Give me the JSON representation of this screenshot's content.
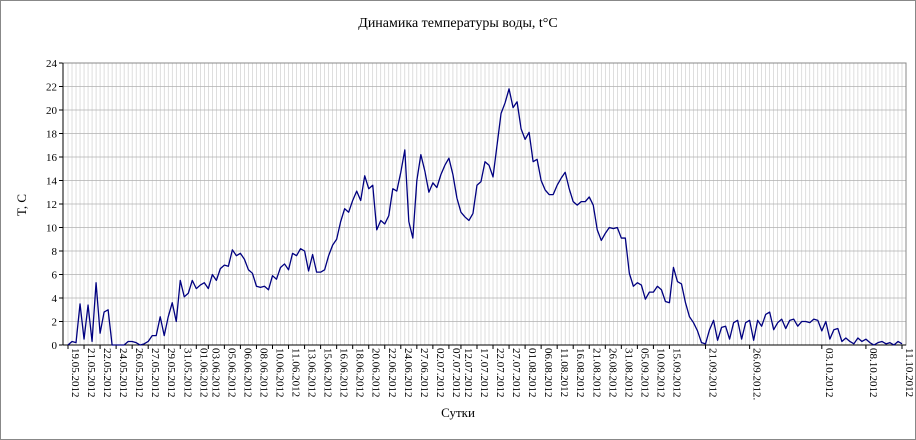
{
  "chart_data": {
    "type": "line",
    "title": "Динамика температуры воды, t°C",
    "y_label": "T, C",
    "x_label": "Сутки",
    "categories": [
      "19.05.2012",
      null,
      null,
      null,
      "21.05.2012",
      null,
      null,
      null,
      "22.05.2012",
      null,
      null,
      null,
      "24.05.2012",
      null,
      null,
      null,
      "26.05.2012",
      null,
      null,
      null,
      "27.05.2012",
      null,
      null,
      null,
      "29.05.2012",
      null,
      null,
      null,
      "31.05.2012",
      null,
      null,
      null,
      "01.06.2012",
      null,
      null,
      "03.06.2012",
      null,
      null,
      null,
      "05.06.2012",
      null,
      null,
      null,
      "06.06.2012",
      null,
      null,
      null,
      "08.06.2012",
      null,
      null,
      null,
      "10.06.2012",
      null,
      null,
      null,
      "11.06.2012",
      null,
      null,
      null,
      "13.06.2012",
      null,
      null,
      null,
      "15.06.2012",
      null,
      null,
      null,
      "16.06.2012",
      null,
      null,
      null,
      "18.06.2012",
      null,
      null,
      null,
      "20.06.2012",
      null,
      null,
      null,
      "22.06.2012",
      null,
      null,
      null,
      "24.06.2012",
      null,
      null,
      null,
      "27.06.2012",
      null,
      null,
      null,
      "02.07.2012",
      null,
      null,
      null,
      "07.07.2012",
      null,
      null,
      "12.07.2012",
      null,
      null,
      null,
      "17.07.2012",
      null,
      null,
      null,
      "22.07.2012",
      null,
      null,
      null,
      "27.07.2012",
      null,
      null,
      null,
      "01.08.2012",
      null,
      null,
      null,
      "06.08.2012",
      null,
      null,
      null,
      "11.08.2012",
      null,
      null,
      null,
      "16.08.2012",
      null,
      null,
      null,
      "21.08.2012",
      null,
      null,
      null,
      "26.08.2012",
      null,
      null,
      null,
      "31.08.2012",
      null,
      null,
      null,
      "05.09.2012",
      null,
      null,
      null,
      "10.09.2012",
      null,
      null,
      null,
      "15.09.2012",
      null,
      null,
      null,
      null,
      null,
      null,
      null,
      null,
      "21.09.2012",
      null,
      null,
      null,
      null,
      null,
      null,
      null,
      null,
      null,
      null,
      "26.09.2012.",
      null,
      null,
      null,
      null,
      null,
      null,
      null,
      null,
      null,
      null,
      null,
      null,
      null,
      null,
      null,
      null,
      null,
      "03.10.2012",
      null,
      null,
      null,
      null,
      null,
      null,
      null,
      null,
      null,
      null,
      "08.10.2012",
      null,
      null,
      null,
      null,
      null,
      null,
      null,
      null,
      "11.10.2012"
    ],
    "series": [
      {
        "color": "#000080",
        "values": [
          0,
          0.3,
          0.2,
          3.5,
          0.5,
          3.4,
          0.3,
          5.3,
          1,
          2.8,
          3,
          0,
          0,
          0,
          0,
          0.3,
          0.3,
          0.2,
          0,
          0.1,
          0.3,
          0.8,
          0.8,
          2.4,
          0.8,
          2.4,
          3.6,
          2,
          5.5,
          4.1,
          4.4,
          5.5,
          4.8,
          5.1,
          5.3,
          4.8,
          6,
          5.5,
          6.5,
          6.8,
          6.7,
          8.1,
          7.6,
          7.8,
          7.3,
          6.4,
          6.1,
          5,
          4.9,
          5,
          4.7,
          5.9,
          5.6,
          6.6,
          6.9,
          6.4,
          7.8,
          7.6,
          8.2,
          8,
          6.3,
          7.7,
          6.2,
          6.2,
          6.4,
          7.6,
          8.5,
          9,
          10.5,
          11.6,
          11.3,
          12.3,
          13.1,
          12.3,
          14.4,
          13.3,
          13.6,
          9.8,
          10.6,
          10.3,
          11,
          13.3,
          13.1,
          14.7,
          16.6,
          10.5,
          9.1,
          14,
          16.2,
          14.8,
          13,
          13.8,
          13.4,
          14.5,
          15.3,
          15.9,
          14.5,
          12.5,
          11.3,
          10.9,
          10.6,
          11.2,
          13.6,
          13.9,
          15.6,
          15.3,
          14.3,
          17,
          19.7,
          20.6,
          21.8,
          20.2,
          20.7,
          18.4,
          17.5,
          18.1,
          15.6,
          15.8,
          14,
          13.2,
          12.8,
          12.8,
          13.6,
          14.2,
          14.7,
          13.3,
          12.2,
          11.9,
          12.2,
          12.2,
          12.6,
          11.9,
          9.8,
          8.9,
          9.5,
          10,
          9.9,
          10,
          9.1,
          9.1,
          6.1,
          5,
          5.3,
          5.1,
          3.9,
          4.5,
          4.5,
          5,
          4.7,
          3.7,
          3.6,
          6.6,
          5.4,
          5.2,
          3.6,
          2.4,
          1.9,
          1.2,
          0.2,
          0.1,
          1.3,
          2.1,
          0.4,
          1.5,
          1.6,
          0.5,
          1.9,
          2.1,
          0.5,
          1.9,
          2.1,
          0.4,
          2.1,
          1.6,
          2.6,
          2.8,
          1.3,
          1.9,
          2.2,
          1.4,
          2.1,
          2.2,
          1.6,
          2,
          2,
          1.9,
          2.2,
          2.1,
          1.2,
          2,
          0.5,
          1.3,
          1.4,
          0.3,
          0.6,
          0.3,
          0.1,
          0.6,
          0.3,
          0.5,
          0.2,
          0,
          0.2,
          0.3,
          0.1,
          0.2,
          0,
          0.3,
          0.1
        ]
      }
    ],
    "ylim": [
      0,
      24
    ],
    "yticks": [
      0,
      2,
      4,
      6,
      8,
      10,
      12,
      14,
      16,
      18,
      20,
      22,
      24
    ],
    "grid": true
  }
}
